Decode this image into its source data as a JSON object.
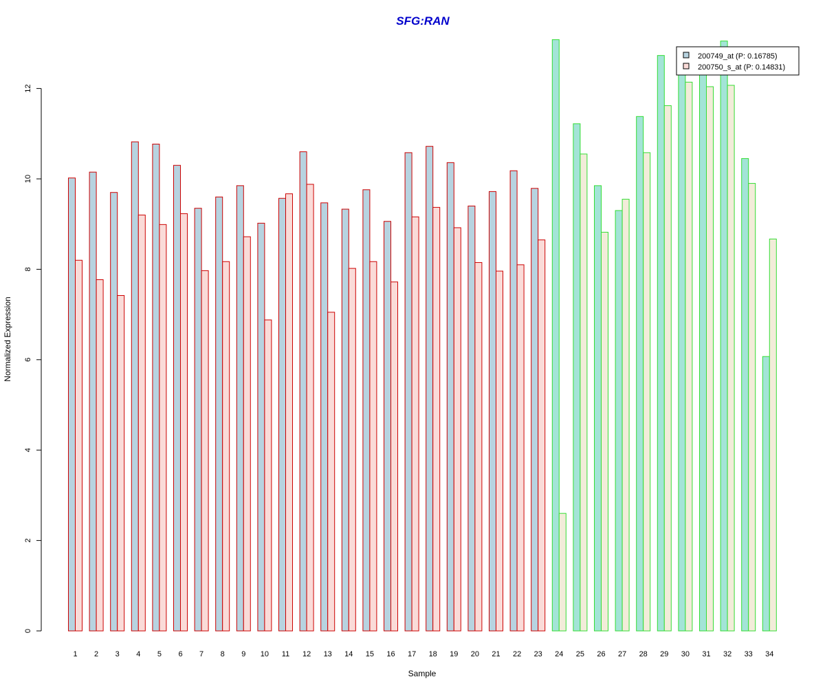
{
  "chart_data": {
    "type": "bar",
    "title": "SFG:RAN",
    "xlabel": "Sample",
    "ylabel": "Normalized Expression",
    "ylim": [
      0,
      13.2
    ],
    "yticks": [
      0,
      2,
      4,
      6,
      8,
      10,
      12
    ],
    "grid": false,
    "legend_position": "top-right",
    "categories": [
      "1",
      "2",
      "3",
      "4",
      "5",
      "6",
      "7",
      "8",
      "9",
      "10",
      "11",
      "12",
      "13",
      "14",
      "15",
      "16",
      "17",
      "18",
      "19",
      "20",
      "21",
      "22",
      "23",
      "24",
      "25",
      "26",
      "27",
      "28",
      "29",
      "30",
      "31",
      "32",
      "33",
      "34"
    ],
    "group_border_colors": [
      "#cc0000",
      "#cc0000",
      "#cc0000",
      "#cc0000",
      "#cc0000",
      "#cc0000",
      "#cc0000",
      "#cc0000",
      "#cc0000",
      "#cc0000",
      "#cc0000",
      "#cc0000",
      "#cc0000",
      "#cc0000",
      "#cc0000",
      "#cc0000",
      "#cc0000",
      "#cc0000",
      "#cc0000",
      "#cc0000",
      "#cc0000",
      "#cc0000",
      "#cc0000",
      "#33dd33",
      "#33dd33",
      "#33dd33",
      "#33dd33",
      "#33dd33",
      "#33dd33",
      "#33dd33",
      "#33dd33",
      "#33dd33",
      "#33dd33",
      "#33dd33"
    ],
    "series": [
      {
        "name": "200749_at (P: 0.16785)",
        "color_group1": "#b7d3e0",
        "color_group2": "#a3e4d7",
        "values": [
          10.02,
          10.15,
          9.7,
          10.82,
          10.77,
          10.3,
          9.35,
          9.6,
          9.85,
          9.02,
          9.57,
          10.6,
          9.47,
          9.33,
          9.76,
          9.06,
          10.58,
          10.72,
          10.36,
          9.4,
          9.72,
          10.18,
          9.79,
          13.08,
          11.22,
          9.85,
          9.3,
          11.38,
          12.73,
          12.4,
          12.5,
          13.05,
          10.45,
          6.07
        ]
      },
      {
        "name": "200750_s_at (P: 0.14831)",
        "color_group1": "#fadbd8",
        "color_group2": "#f2ecd9",
        "values": [
          8.2,
          7.77,
          7.42,
          9.2,
          8.99,
          9.23,
          7.97,
          8.17,
          8.72,
          6.88,
          9.67,
          9.88,
          7.05,
          8.02,
          8.17,
          7.72,
          9.16,
          9.37,
          8.92,
          8.15,
          7.96,
          8.1,
          8.65,
          2.6,
          10.55,
          8.82,
          9.55,
          10.58,
          11.62,
          12.14,
          12.04,
          12.07,
          9.9,
          8.67
        ]
      }
    ],
    "legend_box_colors": [
      "#b7d3e0",
      "#fadbd8"
    ]
  }
}
